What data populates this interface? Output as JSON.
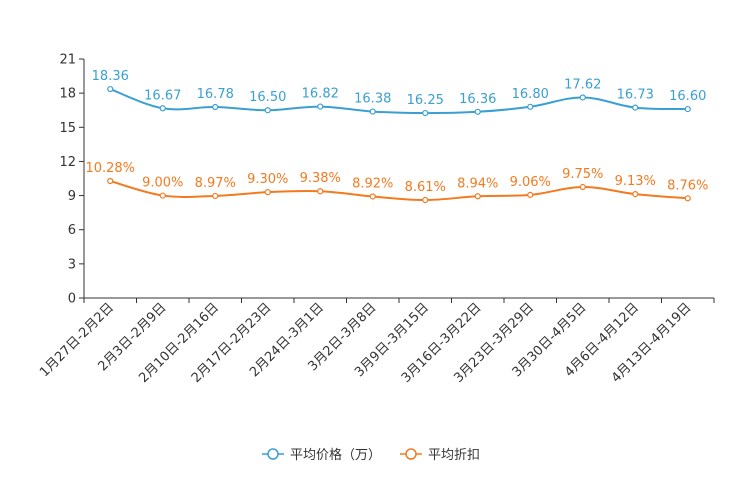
{
  "chart_data": {
    "type": "line",
    "title": "",
    "xlabel": "",
    "ylabel": "",
    "ylim": [
      0,
      21
    ],
    "yticks": [
      0,
      3,
      6,
      9,
      12,
      15,
      18,
      21
    ],
    "yticks_labels": [
      "0",
      "3",
      "6",
      "9",
      "12",
      "15",
      "18",
      "21"
    ],
    "grid": false,
    "legend_position": "bottom-center",
    "categories": [
      "1月27日-2月2日",
      "2月3日-2月9日",
      "2月10日-2月16日",
      "2月17日-2月23日",
      "2月24日-3月1日",
      "3月2日-3月8日",
      "3月9日-3月15日",
      "3月16日-3月22日",
      "3月23日-3月29日",
      "3月30日-4月5日",
      "4月6日-4月12日",
      "4月13日-4月19日"
    ],
    "series": [
      {
        "name": "平均价格（万）",
        "color": "#3a9fd1",
        "values": [
          18.36,
          16.67,
          16.78,
          16.5,
          16.82,
          16.38,
          16.25,
          16.36,
          16.8,
          17.62,
          16.73,
          16.6
        ],
        "labels": [
          "18.36",
          "16.67",
          "16.78",
          "16.50",
          "16.82",
          "16.38",
          "16.25",
          "16.36",
          "16.80",
          "17.62",
          "16.73",
          "16.60"
        ]
      },
      {
        "name": "平均折扣",
        "color": "#f47a20",
        "values": [
          10.28,
          9.0,
          8.97,
          9.3,
          9.38,
          8.92,
          8.61,
          8.94,
          9.06,
          9.75,
          9.13,
          8.76
        ],
        "labels": [
          "10.28%",
          "9.00%",
          "8.97%",
          "9.30%",
          "9.38%",
          "8.92%",
          "8.61%",
          "8.94%",
          "9.06%",
          "9.75%",
          "9.13%",
          "8.76%"
        ]
      }
    ]
  }
}
